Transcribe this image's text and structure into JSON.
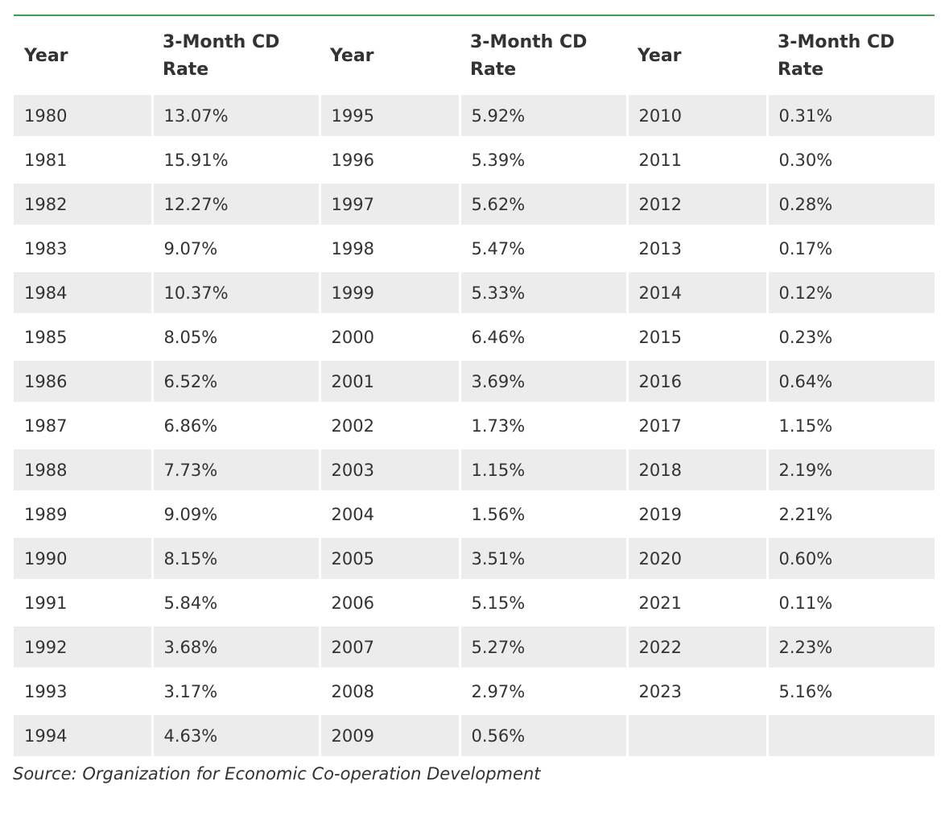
{
  "table": {
    "headers": [
      "Year",
      "3-Month CD Rate",
      "Year",
      "3-Month CD Rate",
      "Year",
      "3-Month CD Rate"
    ],
    "rows": [
      [
        "1980",
        "13.07%",
        "1995",
        "5.92%",
        "2010",
        "0.31%"
      ],
      [
        "1981",
        "15.91%",
        "1996",
        "5.39%",
        "2011",
        "0.30%"
      ],
      [
        "1982",
        "12.27%",
        "1997",
        "5.62%",
        "2012",
        "0.28%"
      ],
      [
        "1983",
        "9.07%",
        "1998",
        "5.47%",
        "2013",
        "0.17%"
      ],
      [
        "1984",
        "10.37%",
        "1999",
        "5.33%",
        "2014",
        "0.12%"
      ],
      [
        "1985",
        "8.05%",
        "2000",
        "6.46%",
        "2015",
        "0.23%"
      ],
      [
        "1986",
        "6.52%",
        "2001",
        "3.69%",
        "2016",
        "0.64%"
      ],
      [
        "1987",
        "6.86%",
        "2002",
        "1.73%",
        "2017",
        "1.15%"
      ],
      [
        "1988",
        "7.73%",
        "2003",
        "1.15%",
        "2018",
        "2.19%"
      ],
      [
        "1989",
        "9.09%",
        "2004",
        "1.56%",
        "2019",
        "2.21%"
      ],
      [
        "1990",
        "8.15%",
        "2005",
        "3.51%",
        "2020",
        "0.60%"
      ],
      [
        "1991",
        "5.84%",
        "2006",
        "5.15%",
        "2021",
        "0.11%"
      ],
      [
        "1992",
        "3.68%",
        "2007",
        "5.27%",
        "2022",
        "2.23%"
      ],
      [
        "1993",
        "3.17%",
        "2008",
        "2.97%",
        "2023",
        "5.16%"
      ],
      [
        "1994",
        "4.63%",
        "2009",
        "0.56%",
        "",
        ""
      ]
    ]
  },
  "source": "Source: Organization for Economic Co-operation Development",
  "colors": {
    "accent_rule": "#3aa04a",
    "row_shade": "#ececec",
    "text": "#333333"
  }
}
